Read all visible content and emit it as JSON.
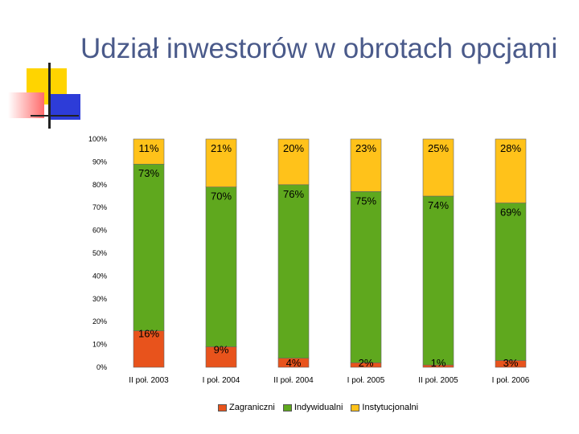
{
  "slide": {
    "title": "Udział inwestorów w obrotach opcjami"
  },
  "colors": {
    "zagraniczni": "#e8531c",
    "indywidualni": "#5fa81e",
    "instytucjonalni": "#ffc21a",
    "title": "#4a5a8a"
  },
  "chart_data": {
    "type": "bar",
    "stacked": true,
    "percent": true,
    "categories": [
      "II poł. 2003",
      "I poł. 2004",
      "II poł. 2004",
      "I poł. 2005",
      "II poł. 2005",
      "I poł. 2006"
    ],
    "series": [
      {
        "name": "Zagraniczni",
        "values": [
          16,
          9,
          4,
          2,
          1,
          3
        ],
        "labels": [
          "16%",
          "9%",
          "4%",
          "2%",
          "1%",
          "3%"
        ]
      },
      {
        "name": "Indywidualni",
        "values": [
          73,
          70,
          76,
          75,
          74,
          69
        ],
        "labels": [
          "73%",
          "70%",
          "76%",
          "75%",
          "74%",
          "69%"
        ]
      },
      {
        "name": "Instytucjonalni",
        "values": [
          11,
          21,
          20,
          23,
          25,
          28
        ],
        "labels": [
          "11%",
          "21%",
          "20%",
          "23%",
          "25%",
          "28%"
        ]
      }
    ],
    "yticks": [
      "0%",
      "10%",
      "20%",
      "30%",
      "40%",
      "50%",
      "60%",
      "70%",
      "80%",
      "90%",
      "100%"
    ],
    "ylim": [
      0,
      100
    ],
    "legend_position": "bottom",
    "grid": false
  }
}
